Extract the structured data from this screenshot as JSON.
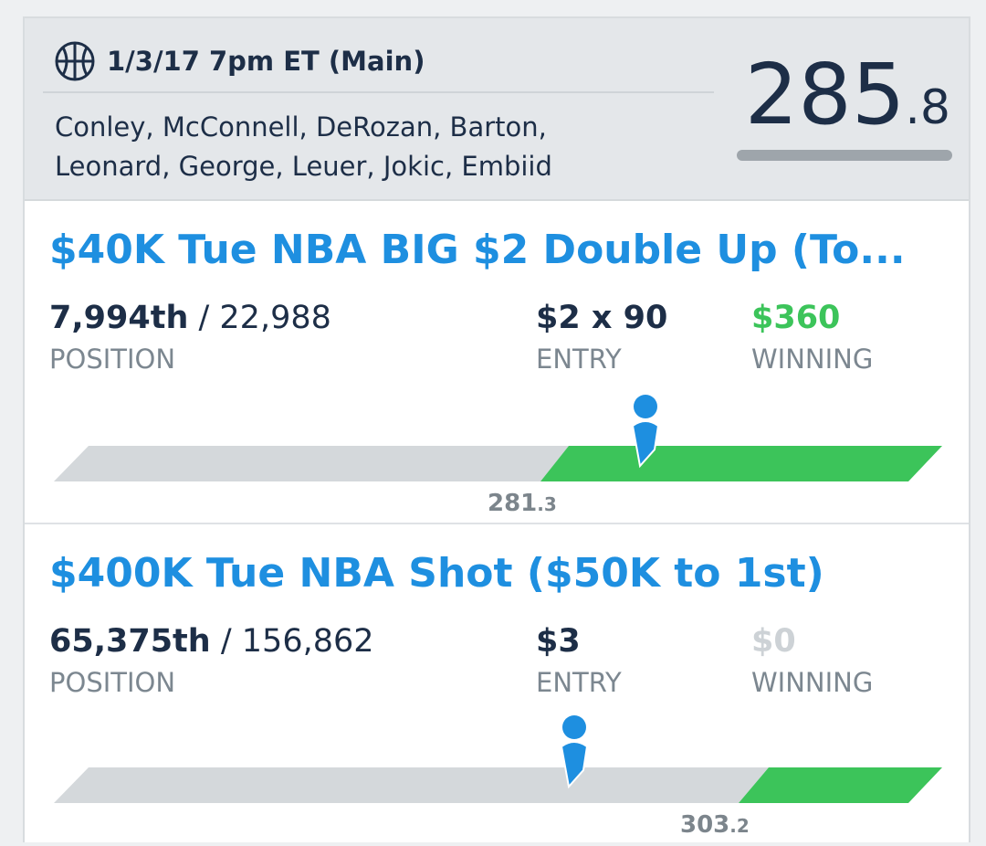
{
  "header": {
    "slate": "1/3/17 7pm ET (Main)",
    "players": "Conley, McConnell, DeRozan, Barton, Leonard, George, Leuer, Jokic, Embiid",
    "score_whole": "285",
    "score_decimal": ".8"
  },
  "contests": [
    {
      "title": "$40K Tue NBA BIG $2 Double Up (To...",
      "rank": "7,994th",
      "total": "/ 22,988",
      "position_label": "POSITION",
      "entry": "$2 x 90",
      "entry_label": "ENTRY",
      "winning": "$360",
      "winning_label": "WINNING",
      "cutoff_whole": "281",
      "cutoff_decimal": ".3"
    },
    {
      "title": "$400K Tue NBA Shot ($50K to 1st)",
      "rank": "65,375th",
      "total": "/ 156,862",
      "position_label": "POSITION",
      "entry": "$3",
      "entry_label": "ENTRY",
      "winning": "$0",
      "winning_label": "WINNING",
      "cutoff_whole": "303",
      "cutoff_decimal": ".2"
    }
  ]
}
